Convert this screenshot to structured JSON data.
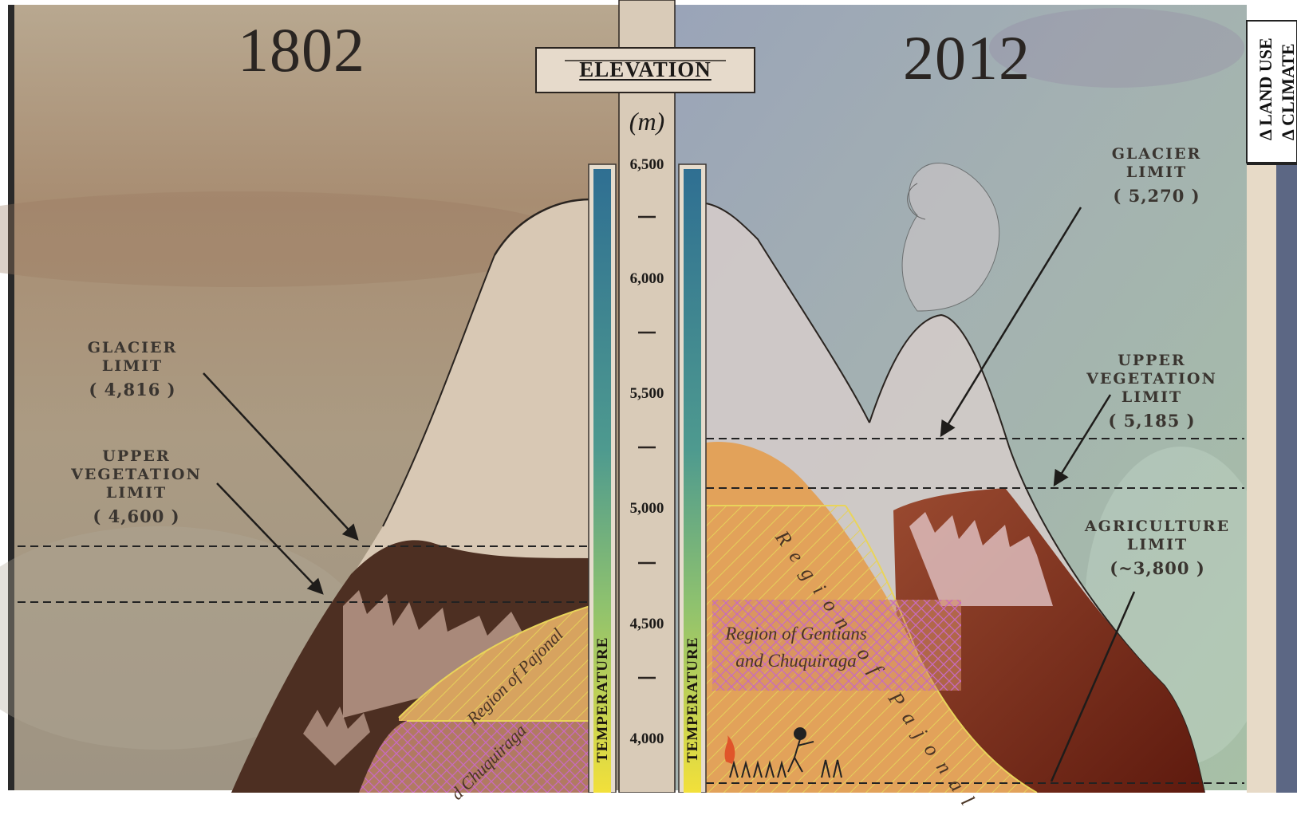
{
  "left_panel": {
    "year": "1802",
    "glacier": {
      "title_line1": "GLACIER",
      "title_line2": "LIMIT",
      "value": "( 4,816 )"
    },
    "vegetation": {
      "title_line1": "UPPER",
      "title_line2": "VEGETATION",
      "title_line3": "LIMIT",
      "value": "( 4,600 )"
    },
    "regions": {
      "pajonal": "Region of Pajonal",
      "chuquiraga": "d Chuquiraga"
    }
  },
  "right_panel": {
    "year": "2012",
    "glacier": {
      "title_line1": "GLACIER",
      "title_line2": "LIMIT",
      "value": "( 5,270 )"
    },
    "vegetation": {
      "title_line1": "UPPER",
      "title_line2": "VEGETATION",
      "title_line3": "LIMIT",
      "value": "( 5,185 )"
    },
    "agriculture": {
      "title_line1": "AGRICULTURE",
      "title_line2": "LIMIT",
      "value": "(~3,800 )"
    },
    "regions": {
      "pajonal": "Region of Pajonal",
      "gentians_line1": "Region of Gentians",
      "gentians_line2": "and Chuquiraga"
    }
  },
  "scale": {
    "title": "ELEVATION",
    "unit": "(m)",
    "temperature_label": "TEMPERATURE",
    "ticks": [
      "6,500",
      "6,000",
      "5,500",
      "5,000",
      "4,500",
      "4,000"
    ]
  },
  "side_tab": {
    "label_1": "Δ LAND USE",
    "label_2": "Δ CLIMATE"
  },
  "colors": {
    "gradient_top": "#2f6f92",
    "gradient_mid": "#7dbb78",
    "gradient_bottom": "#f2e03a",
    "glacier_snow": "#d9c9b6",
    "rock": "#5a3a28",
    "soil_orange": "#e2a25a",
    "soil_red": "#7a2a18"
  }
}
